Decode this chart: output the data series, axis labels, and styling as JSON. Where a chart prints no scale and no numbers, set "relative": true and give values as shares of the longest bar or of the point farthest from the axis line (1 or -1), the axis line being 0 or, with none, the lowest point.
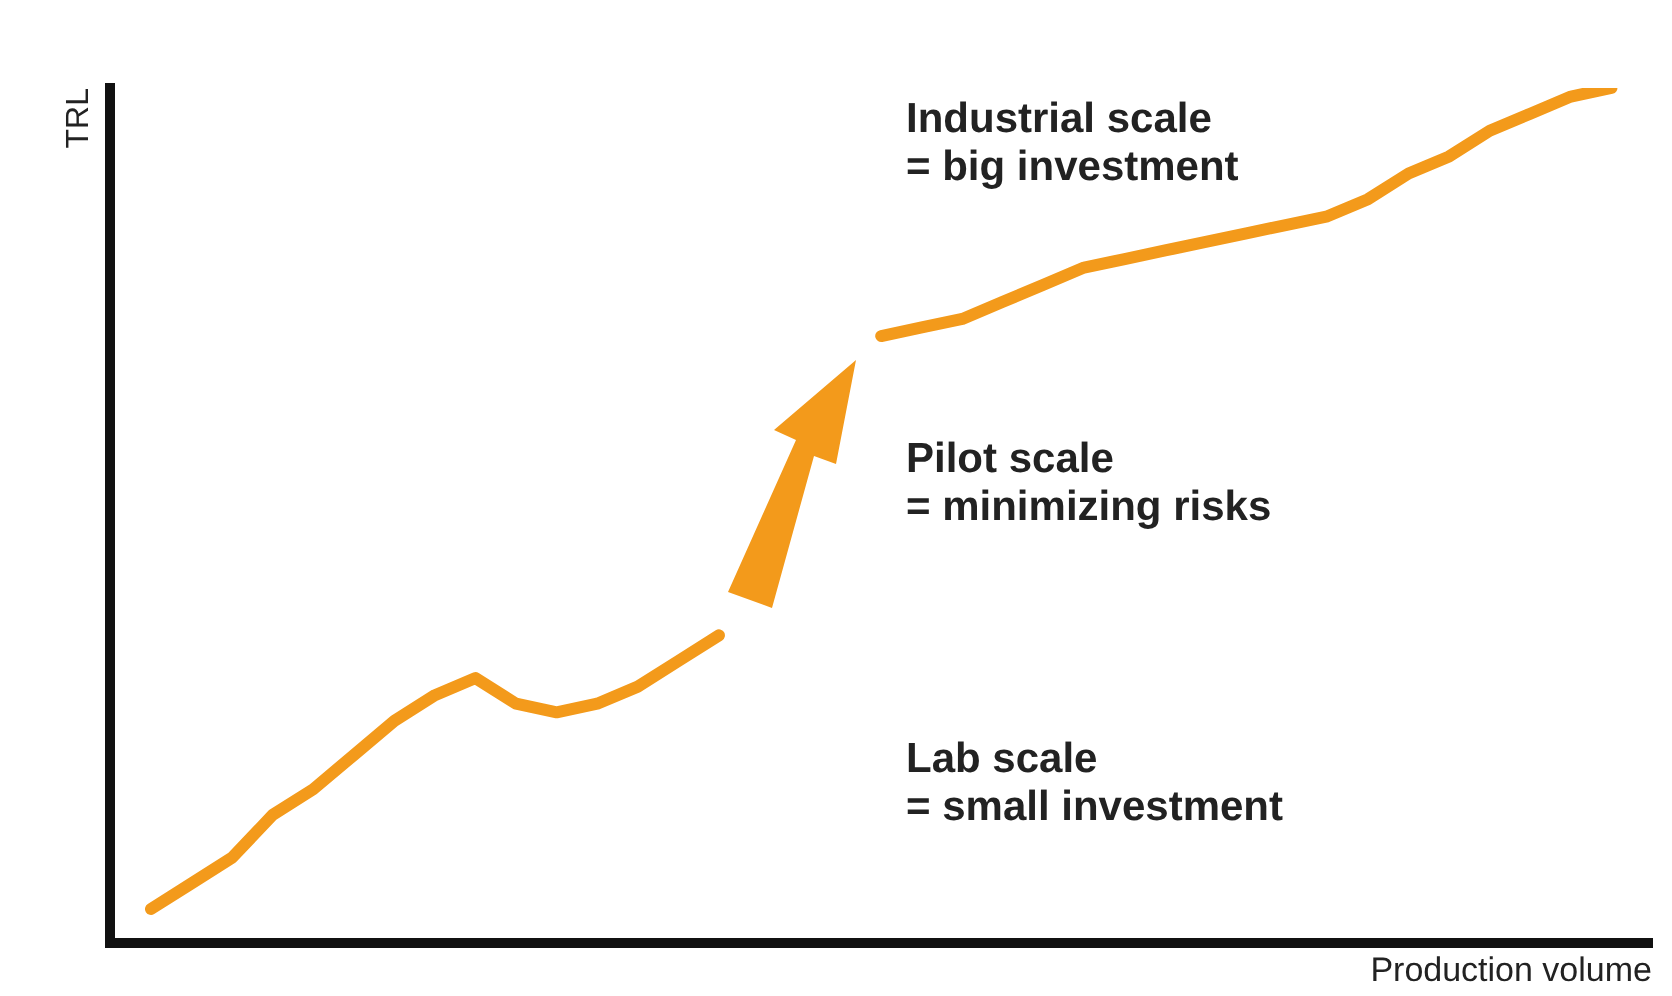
{
  "chart_data": {
    "type": "line",
    "relative": true,
    "xlabel": "Production volume",
    "ylabel": "TRL",
    "categories": [
      null,
      null,
      null,
      null,
      null,
      null,
      null,
      null,
      null,
      null,
      null,
      null,
      null,
      null,
      null,
      null,
      null,
      null,
      null,
      null,
      null,
      null,
      null,
      null,
      null,
      null,
      null,
      null,
      null,
      null,
      null,
      null,
      null,
      null,
      null,
      null,
      null,
      null,
      null
    ],
    "series": [
      {
        "color": "#f39a1b",
        "values": [
          null,
          0.04,
          0.07,
          0.1,
          0.15,
          0.18,
          0.22,
          0.26,
          0.29,
          0.31,
          0.28,
          0.27,
          0.28,
          0.3,
          0.33,
          0.36,
          null,
          null,
          null,
          null,
          null,
          null,
          null,
          null,
          null,
          null,
          null,
          null,
          null,
          null,
          null,
          null,
          null,
          null,
          null,
          null,
          null,
          null,
          null
        ]
      },
      {
        "color": "#f39a1b",
        "values": [
          null,
          null,
          null,
          null,
          null,
          null,
          null,
          null,
          null,
          null,
          null,
          null,
          null,
          null,
          null,
          null,
          null,
          null,
          null,
          0.71,
          0.72,
          0.73,
          0.75,
          0.77,
          0.79,
          0.8,
          0.81,
          0.82,
          0.83,
          0.84,
          0.85,
          0.87,
          0.9,
          0.92,
          0.95,
          0.97,
          0.99,
          1,
          null
        ]
      }
    ],
    "grid": false,
    "annotations": [
      "Industrial scale\n= big investment",
      "Pilot scale\n= minimizing risks",
      "Lab scale\n= small investment"
    ],
    "legend": false,
    "marker": "none",
    "line_style": "solid"
  }
}
